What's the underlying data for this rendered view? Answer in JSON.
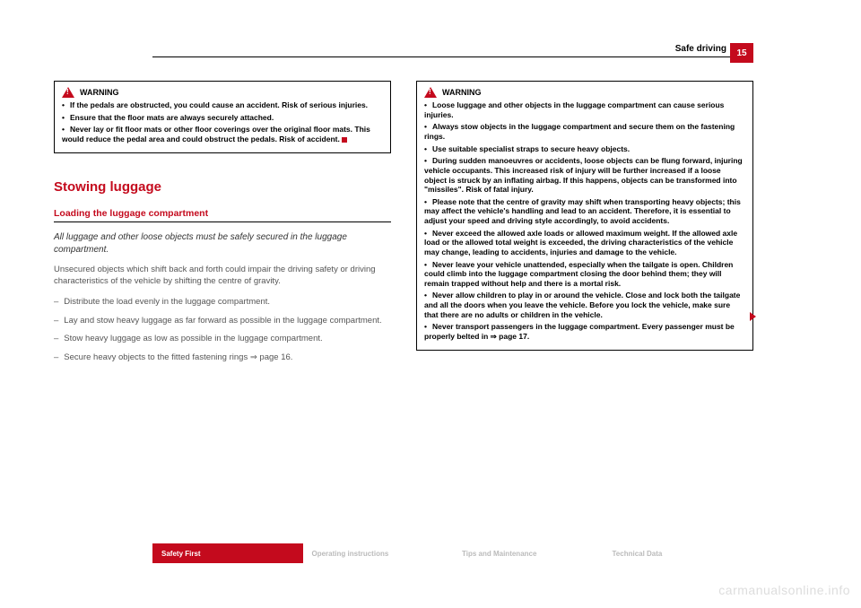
{
  "header": {
    "section": "Safe driving",
    "page_number": "15"
  },
  "left_warning": {
    "title": "WARNING",
    "items": [
      "If the pedals are obstructed, you could cause an accident. Risk of serious injuries.",
      "Ensure that the floor mats are always securely attached.",
      "Never lay or fit floor mats or other floor coverings over the original floor mats. This would reduce the pedal area and could obstruct the pedals. Risk of accident."
    ]
  },
  "section_title": "Stowing luggage",
  "subsection_title": "Loading the luggage compartment",
  "intro_text": "All luggage and other loose objects must be safely secured in the luggage compartment.",
  "body_text": "Unsecured objects which shift back and forth could impair the driving safety or driving characteristics of the vehicle by shifting the centre of gravity.",
  "dash_items": [
    "Distribute the load evenly in the luggage compartment.",
    "Lay and stow heavy luggage as far forward as possible in the luggage compartment.",
    "Stow heavy luggage as low as possible in the luggage compartment.",
    "Secure heavy objects to the fitted fastening rings  ⇒ page 16."
  ],
  "right_warning": {
    "title": "WARNING",
    "items": [
      "Loose luggage and other objects in the luggage compartment can cause serious injuries.",
      "Always stow objects in the luggage compartment and secure them on the fastening rings.",
      "Use suitable specialist straps to secure heavy objects.",
      "During sudden manoeuvres or accidents, loose objects can be flung forward, injuring vehicle occupants. This increased risk of injury will be further increased if a loose object is struck by an inflating airbag. If this happens, objects can be transformed into \"missiles\". Risk of fatal injury.",
      "Please note that the centre of gravity may shift when transporting heavy objects; this may affect the vehicle's handling and lead to an accident. Therefore, it is essential to adjust your speed and driving style accordingly, to avoid accidents.",
      "Never exceed the allowed axle loads or allowed maximum weight. If the allowed axle load or the allowed total weight is exceeded, the driving characteristics of the vehicle may change, leading to accidents, injuries and damage to the vehicle.",
      "Never leave your vehicle unattended, especially when the tailgate is open. Children could climb into the luggage compartment closing the door behind them; they will remain trapped without help and there is a mortal risk.",
      "Never allow children to play in or around the vehicle. Close and lock both the tailgate and all the doors when you leave the vehicle. Before you lock the vehicle, make sure that there are no adults or children in the vehicle.",
      "Never transport passengers in the luggage compartment. Every passenger must be properly belted in ⇒ page 17."
    ]
  },
  "tabs": {
    "t1": "Safety First",
    "t2": "Operating instructions",
    "t3": "Tips and Maintenance",
    "t4": "Technical Data"
  },
  "watermark": "carmanualsonline.info",
  "colors": {
    "accent": "#c40a1d",
    "text": "#333333",
    "muted": "#bbbbbb"
  }
}
